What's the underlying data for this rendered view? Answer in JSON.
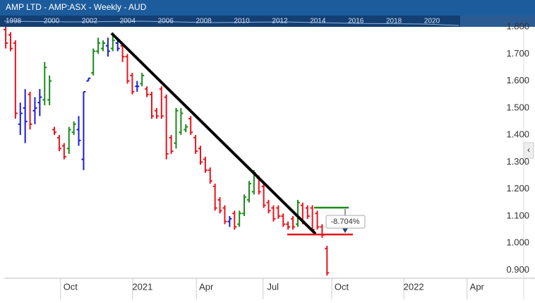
{
  "chart_data": {
    "type": "ohlc",
    "title": "AMP LTD - AMP:ASX - Weekly - AUD",
    "navigator_labels": [
      "1998",
      "2000",
      "2002",
      "2004",
      "2006",
      "2008",
      "2010",
      "2012",
      "2014",
      "2016",
      "2018",
      "2020"
    ],
    "annotation": "-8.704%",
    "high": [
      1.8,
      1.78,
      1.75,
      1.52,
      1.57,
      1.56,
      1.54,
      1.57,
      1.67,
      1.62,
      1.43,
      1.4,
      1.37,
      1.43,
      1.45,
      1.47,
      1.56,
      1.61,
      1.72,
      1.76,
      1.75,
      1.76,
      1.77,
      1.76,
      1.74,
      1.7,
      1.63,
      1.6,
      1.63,
      1.58,
      1.56,
      1.5,
      1.58,
      1.55,
      1.4,
      1.5,
      1.5,
      1.44,
      1.47,
      1.4,
      1.36,
      1.32,
      1.28,
      1.22,
      1.17,
      1.14,
      1.1,
      1.12,
      1.12,
      1.18,
      1.23,
      1.27,
      1.25,
      1.22,
      1.16,
      1.14,
      1.14,
      1.11,
      1.08,
      1.1,
      1.16,
      1.15,
      1.14,
      1.14,
      1.12,
      1.07,
      0.99
    ],
    "low": [
      1.72,
      1.71,
      1.46,
      1.4,
      1.37,
      1.42,
      1.44,
      1.47,
      1.51,
      1.51,
      1.4,
      1.34,
      1.31,
      1.33,
      1.4,
      1.36,
      1.27,
      1.6,
      1.62,
      1.7,
      1.71,
      1.69,
      1.71,
      1.71,
      1.67,
      1.59,
      1.55,
      1.56,
      1.58,
      1.54,
      1.46,
      1.46,
      1.46,
      1.31,
      1.33,
      1.35,
      1.4,
      1.41,
      1.4,
      1.33,
      1.29,
      1.26,
      1.22,
      1.12,
      1.11,
      1.07,
      1.06,
      1.05,
      1.06,
      1.1,
      1.15,
      1.18,
      1.18,
      1.13,
      1.11,
      1.08,
      1.09,
      1.06,
      1.05,
      1.05,
      1.06,
      1.07,
      1.09,
      1.04,
      1.05,
      1.02,
      0.88
    ],
    "open": [
      1.79,
      1.77,
      1.74,
      1.44,
      1.5,
      1.55,
      1.49,
      1.52,
      1.53,
      1.53,
      1.42,
      1.39,
      1.36,
      1.35,
      1.41,
      1.42,
      1.31,
      1.6,
      1.63,
      1.71,
      1.72,
      1.73,
      1.72,
      1.74,
      1.73,
      1.69,
      1.62,
      1.58,
      1.59,
      1.57,
      1.55,
      1.49,
      1.57,
      1.54,
      1.39,
      1.37,
      1.41,
      1.42,
      1.46,
      1.39,
      1.35,
      1.31,
      1.27,
      1.21,
      1.16,
      1.13,
      1.08,
      1.11,
      1.07,
      1.11,
      1.16,
      1.19,
      1.24,
      1.21,
      1.15,
      1.13,
      1.13,
      1.1,
      1.07,
      1.09,
      1.07,
      1.14,
      1.13,
      1.13,
      1.11,
      1.06,
      0.98
    ],
    "close": [
      1.74,
      1.72,
      1.48,
      1.48,
      1.45,
      1.44,
      1.5,
      1.54,
      1.65,
      1.6,
      1.41,
      1.35,
      1.32,
      1.42,
      1.44,
      1.38,
      1.56,
      1.61,
      1.71,
      1.74,
      1.74,
      1.71,
      1.75,
      1.72,
      1.69,
      1.6,
      1.56,
      1.58,
      1.62,
      1.55,
      1.47,
      1.47,
      1.47,
      1.33,
      1.34,
      1.49,
      1.48,
      1.43,
      1.41,
      1.34,
      1.3,
      1.27,
      1.23,
      1.13,
      1.12,
      1.08,
      1.09,
      1.06,
      1.11,
      1.17,
      1.22,
      1.26,
      1.19,
      1.14,
      1.12,
      1.09,
      1.1,
      1.07,
      1.06,
      1.06,
      1.15,
      1.08,
      1.1,
      1.05,
      1.06,
      1.03,
      0.89
    ],
    "colors": [
      "#e8141c",
      "#e8141c",
      "#e8141c",
      "#1c1cd6",
      "#1c1cd6",
      "#e8141c",
      "#1c1cd6",
      "#1c1cd6",
      "#1a8a1a",
      "#1a8a1a",
      "#e8141c",
      "#e8141c",
      "#e8141c",
      "#1a8a1a",
      "#1a8a1a",
      "#1c1cd6",
      "#1c1cd6",
      "#1c1cd6",
      "#1a8a1a",
      "#1a8a1a",
      "#1a8a1a",
      "#1c1cd6",
      "#1a8a1a",
      "#1c1cd6",
      "#e8141c",
      "#e8141c",
      "#e8141c",
      "#1c1cd6",
      "#1a8a1a",
      "#e8141c",
      "#e8141c",
      "#e8141c",
      "#e8141c",
      "#e8141c",
      "#e8141c",
      "#1a8a1a",
      "#1a8a1a",
      "#1a8a1a",
      "#e8141c",
      "#e8141c",
      "#e8141c",
      "#e8141c",
      "#e8141c",
      "#e8141c",
      "#e8141c",
      "#e8141c",
      "#1c1cd6",
      "#e8141c",
      "#1a8a1a",
      "#1a8a1a",
      "#1a8a1a",
      "#1a8a1a",
      "#e8141c",
      "#e8141c",
      "#e8141c",
      "#e8141c",
      "#e8141c",
      "#e8141c",
      "#e8141c",
      "#e8141c",
      "#1a8a1a",
      "#e8141c",
      "#e8141c",
      "#e8141c",
      "#e8141c",
      "#e8141c",
      "#e8141c"
    ],
    "xlim": [
      -0.3,
      106.4
    ],
    "xticks": [
      {
        "value": 13.3,
        "label": "Oct"
      },
      {
        "value": 28.1,
        "label": "2021"
      },
      {
        "value": 41.2,
        "label": "Apr"
      },
      {
        "value": 54.9,
        "label": "Jul"
      },
      {
        "value": 69.0,
        "label": "Oct"
      },
      {
        "value": 83.8,
        "label": "2022"
      },
      {
        "value": 96.8,
        "label": "Apr"
      }
    ],
    "ylim": [
      0.87,
      1.821
    ],
    "yticks": [
      {
        "value": 0.9,
        "label": "0.900"
      },
      {
        "value": 1.0,
        "label": "1.000"
      },
      {
        "value": 1.1,
        "label": "1.100"
      },
      {
        "value": 1.2,
        "label": "1.200"
      },
      {
        "value": 1.3,
        "label": "1.300"
      },
      {
        "value": 1.4,
        "label": "1.400"
      },
      {
        "value": 1.5,
        "label": "1.500"
      },
      {
        "value": 1.6,
        "label": "1.600"
      },
      {
        "value": 1.7,
        "label": "1.700"
      },
      {
        "value": 1.8,
        "label": "1.800"
      }
    ]
  }
}
